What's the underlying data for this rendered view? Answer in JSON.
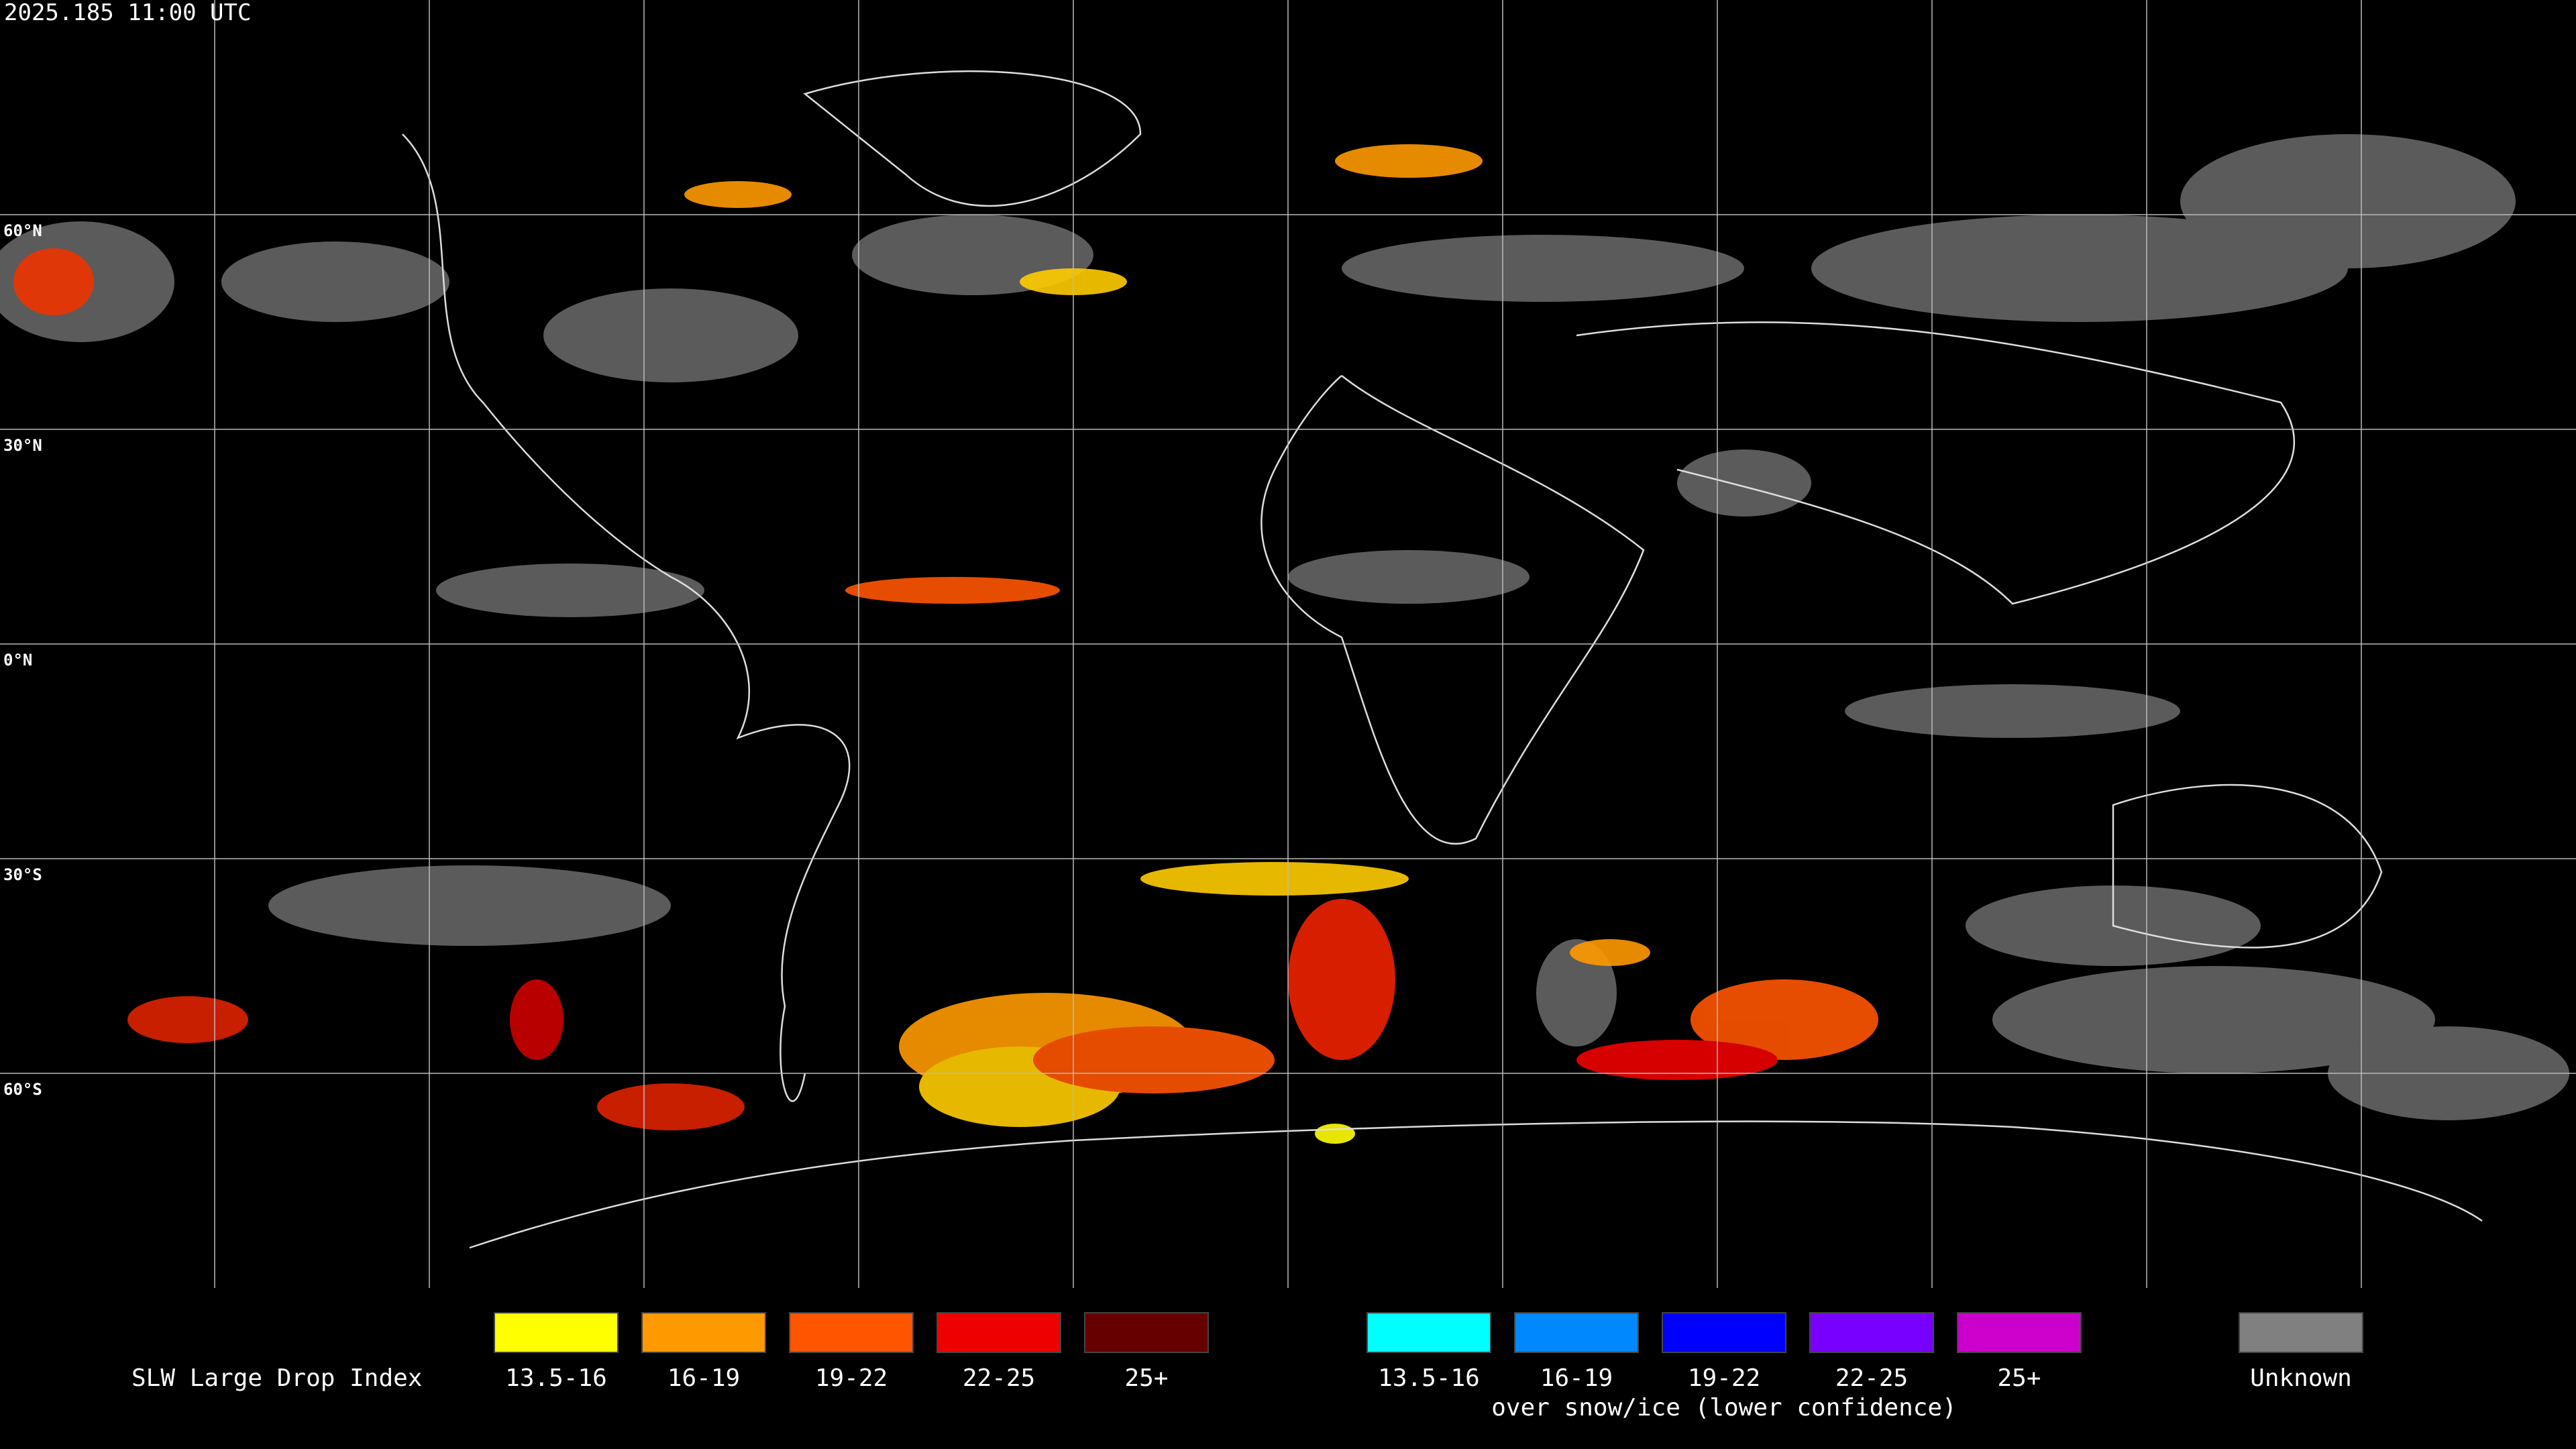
{
  "header": {
    "title": "2025.185 11:00 UTC"
  },
  "map": {
    "lat_labels": [
      "60°N",
      "30°N",
      "0°N",
      "30°S",
      "60°S"
    ]
  },
  "legend": {
    "title": "SLW Large Drop Index",
    "groups": [
      {
        "items": [
          {
            "label": "13.5-16",
            "color": "#ffff00"
          },
          {
            "label": "16-19",
            "color": "#ff9900"
          },
          {
            "label": "19-22",
            "color": "#ff5500"
          },
          {
            "label": "22-25",
            "color": "#ee0000"
          },
          {
            "label": "25+",
            "color": "#660000"
          }
        ]
      },
      {
        "items": [
          {
            "label": "13.5-16",
            "color": "#00ffff"
          },
          {
            "label": "16-19",
            "color": "#0088ff"
          },
          {
            "label": "19-22",
            "color": "#0000ff"
          },
          {
            "label": "22-25",
            "color": "#7700ff"
          },
          {
            "label": "25+",
            "color": "#cc00cc"
          }
        ],
        "caption": "over snow/ice (lower confidence)"
      },
      {
        "items": [
          {
            "label": "Unknown",
            "color": "#808080"
          }
        ]
      }
    ]
  }
}
